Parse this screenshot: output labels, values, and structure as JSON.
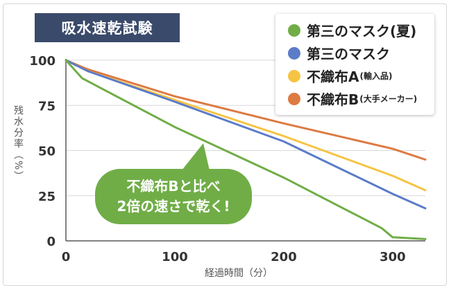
{
  "title": "吸水速乾試験",
  "legend": [
    {
      "label": "第三のマスク(夏)",
      "note": "",
      "color": "#70ad47"
    },
    {
      "label": "第三のマスク",
      "note": "",
      "color": "#5b7cc8"
    },
    {
      "label": "不織布A",
      "note": "(輸入品)",
      "color": "#f5c443"
    },
    {
      "label": "不織布B",
      "note": "(大手メーカー)",
      "color": "#dd7a42"
    }
  ],
  "callout": {
    "line1": "不織布Bと比べ",
    "line2": "2倍の速さで乾く!",
    "color": "#70ad47"
  },
  "chart_data": {
    "type": "line",
    "title": "吸水速乾試験",
    "xlabel": "経過時間（分）",
    "ylabel": "残水分率（%）",
    "xlim": [
      0,
      330
    ],
    "ylim": [
      0,
      100
    ],
    "xticks": [
      0,
      100,
      200,
      300
    ],
    "yticks": [
      0,
      25,
      50,
      75,
      100
    ],
    "grid": "horizontal",
    "legend_position": "top-right",
    "series": [
      {
        "name": "第三のマスク(夏)",
        "color": "#70ad47",
        "x": [
          0,
          15,
          100,
          200,
          290,
          300,
          330
        ],
        "y": [
          100,
          90,
          63,
          35,
          7,
          2,
          1
        ]
      },
      {
        "name": "第三のマスク",
        "color": "#5b7cc8",
        "x": [
          0,
          20,
          100,
          200,
          300,
          330
        ],
        "y": [
          100,
          94,
          77,
          55,
          26,
          18
        ]
      },
      {
        "name": "不織布A",
        "color": "#f5c443",
        "x": [
          0,
          20,
          100,
          200,
          300,
          330
        ],
        "y": [
          100,
          94,
          78,
          58,
          36,
          28
        ]
      },
      {
        "name": "不織布B",
        "color": "#dd7a42",
        "x": [
          0,
          20,
          100,
          200,
          300,
          330
        ],
        "y": [
          100,
          95,
          80,
          65,
          51,
          45
        ]
      }
    ]
  }
}
